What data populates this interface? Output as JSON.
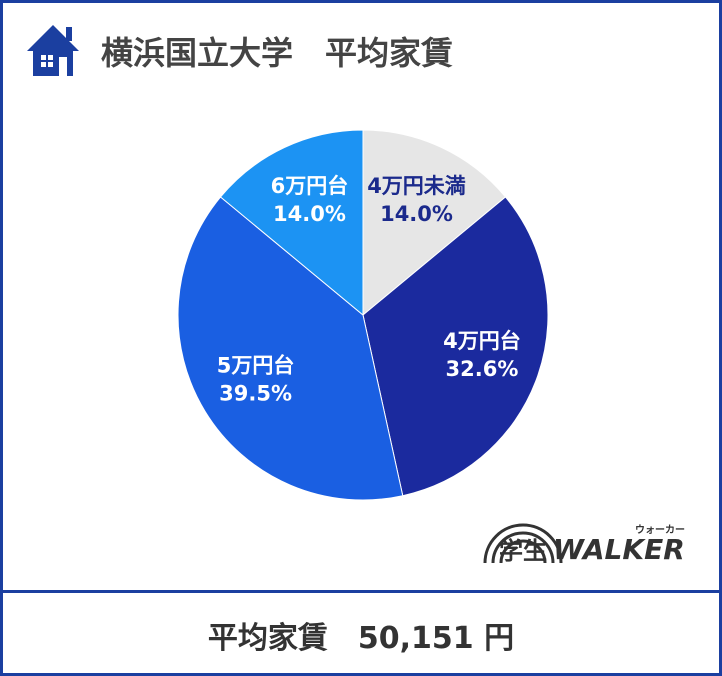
{
  "chart_data": {
    "type": "pie",
    "title": "横浜国立大学　平均家賃",
    "categories": [
      "4万円未満",
      "4万円台",
      "5万円台",
      "6万円台"
    ],
    "values": [
      14.0,
      32.6,
      39.5,
      14.0
    ],
    "value_labels": [
      "14.0%",
      "32.6%",
      "39.5%",
      "14.0%"
    ],
    "colors": [
      "#e6e6e6",
      "#1b2a9e",
      "#1a5fe2",
      "#1c93f3"
    ],
    "label_colors": [
      "#1b2a8c",
      "#ffffff",
      "#ffffff",
      "#ffffff"
    ]
  },
  "logo": {
    "main": "学生",
    "brand": "WALKER",
    "reading": "ウォーカー"
  },
  "footer": {
    "label": "平均家賃",
    "value": "50,151 円"
  }
}
